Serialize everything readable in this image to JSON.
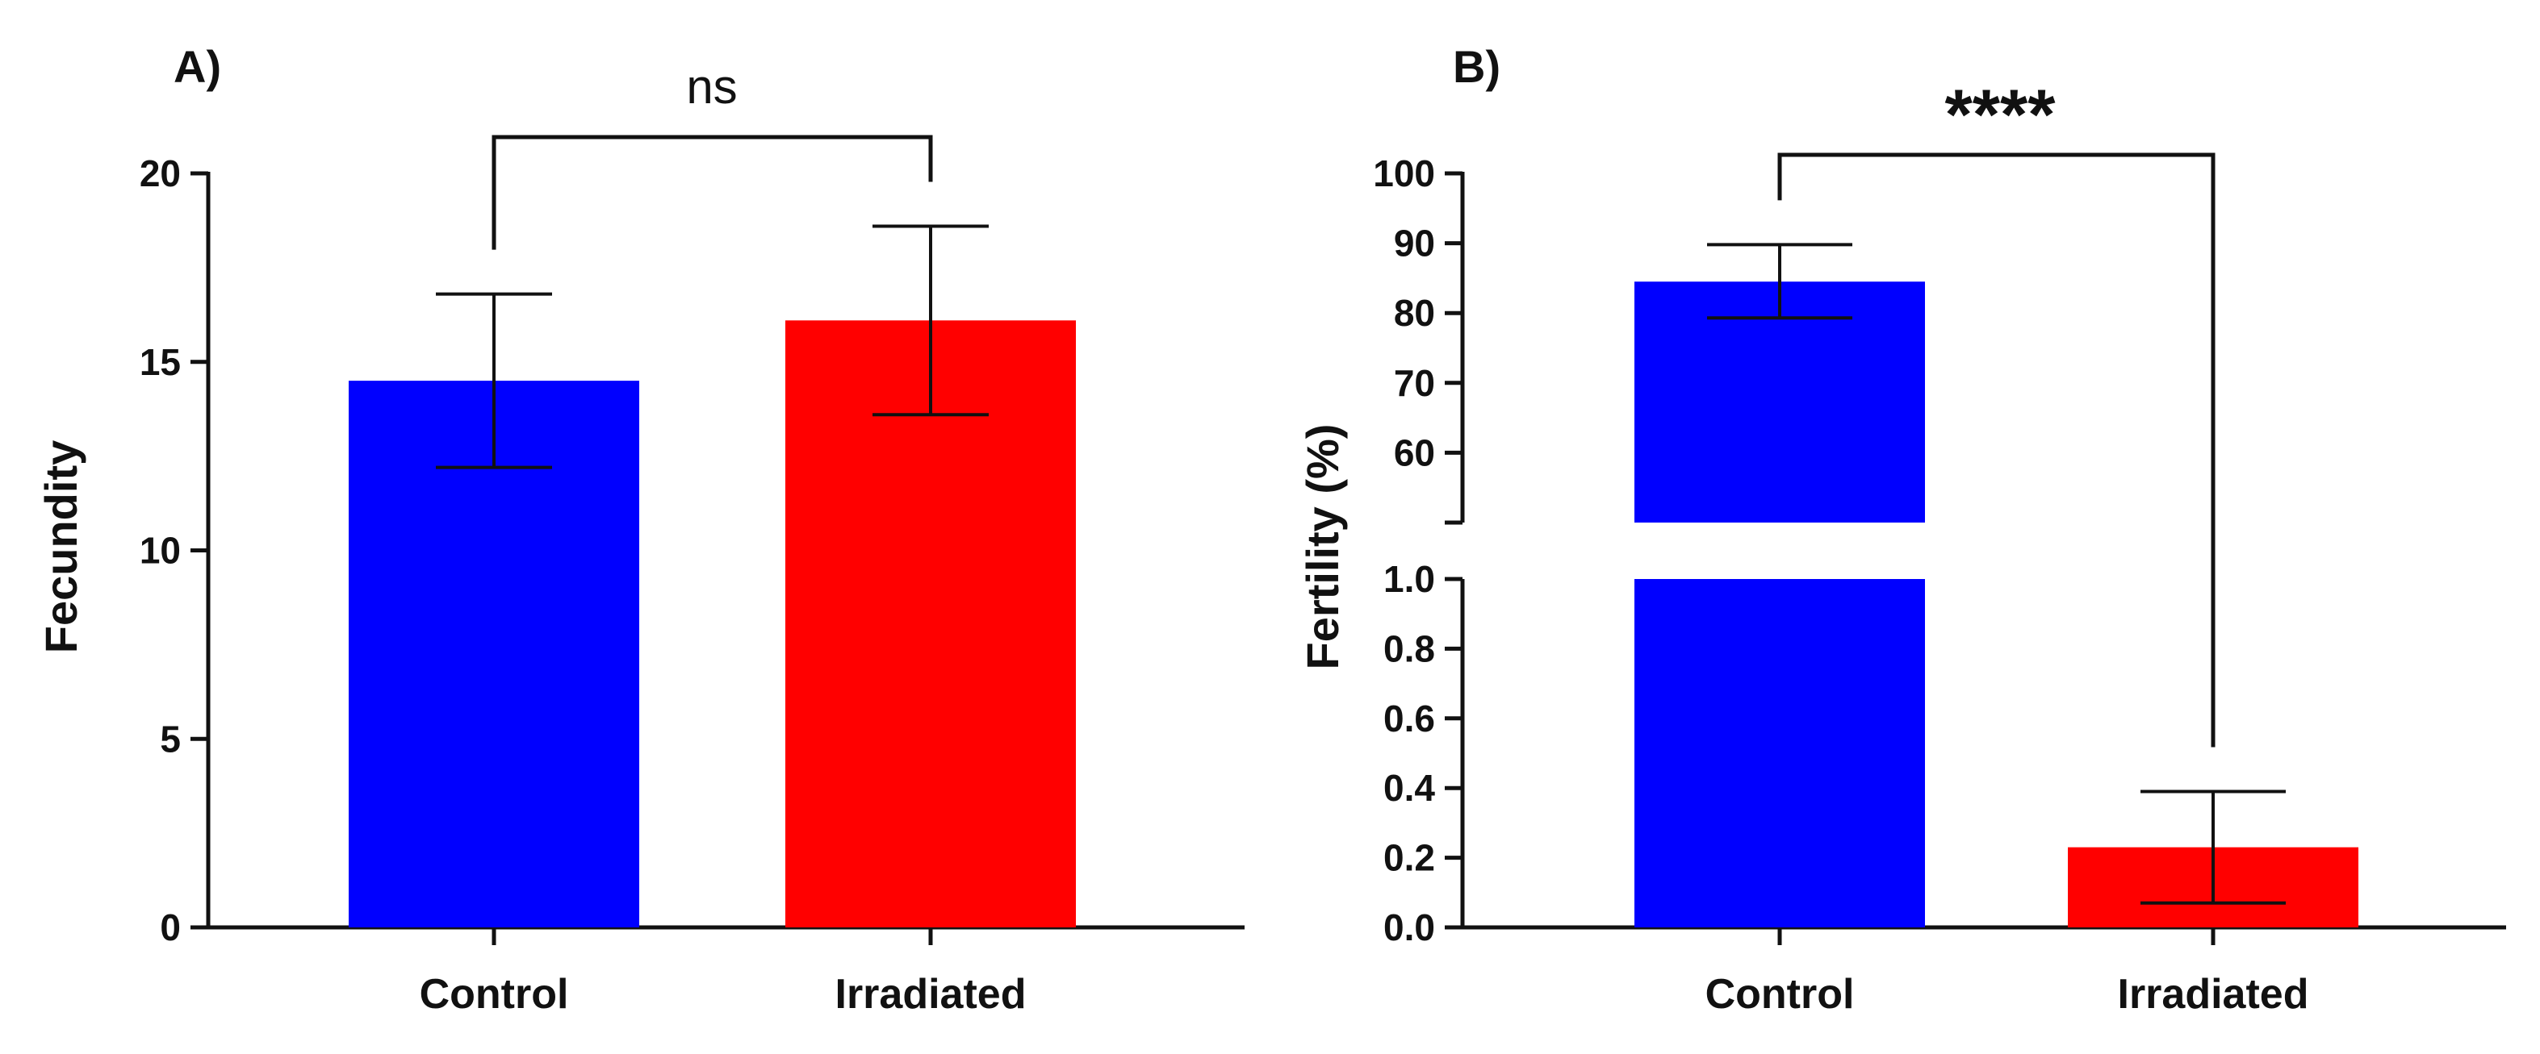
{
  "colors": {
    "control": "#0000ff",
    "irradiated": "#ff0000",
    "axis": "#111111"
  },
  "chart_data": [
    {
      "panel_label": "A)",
      "type": "bar",
      "categories": [
        "Control",
        "Irradiated"
      ],
      "values": [
        14.5,
        16.1
      ],
      "errors": [
        2.3,
        2.5
      ],
      "ylabel": "Fecundity",
      "ylim": [
        0,
        20
      ],
      "yticks": [
        "0",
        "5",
        "10",
        "15",
        "20"
      ],
      "significance": "ns"
    },
    {
      "panel_label": "B)",
      "type": "bar",
      "categories": [
        "Control",
        "Irradiated"
      ],
      "values": [
        84.5,
        0.23
      ],
      "error_upper": [
        89.8,
        0.39
      ],
      "error_lower": [
        79.3,
        0.07
      ],
      "ylabel": "Fertility (%)",
      "broken_axis": {
        "lower_range": [
          0,
          1.0
        ],
        "upper_range": [
          50,
          100
        ],
        "lower_ticks": [
          "0.0",
          "0.2",
          "0.4",
          "0.6",
          "0.8",
          "1.0"
        ],
        "upper_ticks": [
          "60",
          "70",
          "80",
          "90",
          "100"
        ]
      },
      "significance": "****"
    }
  ]
}
